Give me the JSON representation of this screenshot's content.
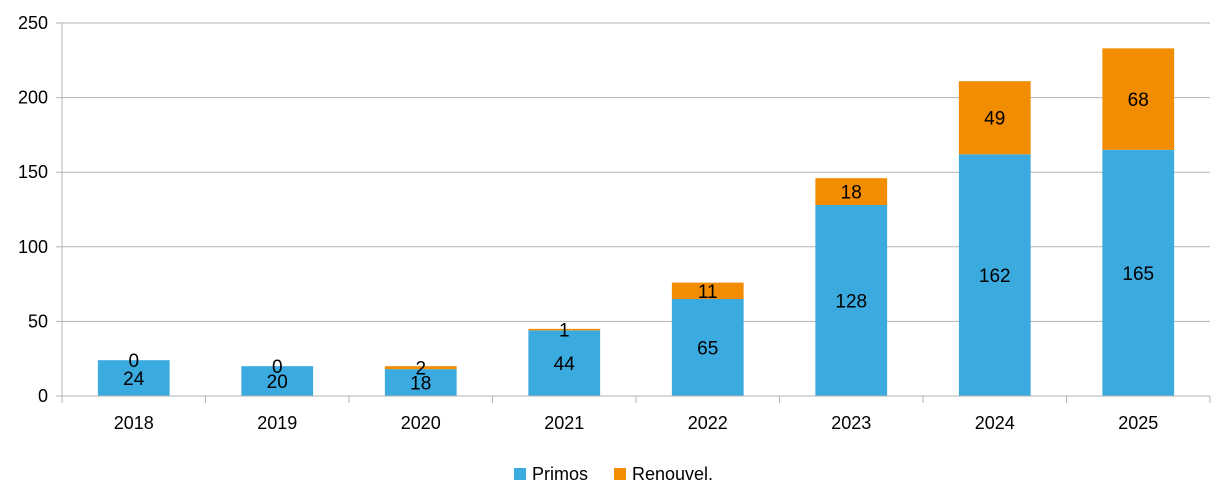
{
  "chart_data": {
    "type": "bar",
    "stacked": true,
    "categories": [
      "2018",
      "2019",
      "2020",
      "2021",
      "2022",
      "2023",
      "2024",
      "2025"
    ],
    "series": [
      {
        "name": "Primos",
        "values": [
          24,
          20,
          18,
          44,
          65,
          128,
          162,
          165
        ],
        "color": "#3aaadf"
      },
      {
        "name": "Renouvel.",
        "values": [
          0,
          0,
          2,
          1,
          11,
          18,
          49,
          68
        ],
        "color": "#f28c00"
      }
    ],
    "title": "",
    "xlabel": "",
    "ylabel": "",
    "ylim": [
      0,
      250
    ],
    "yticks": [
      0,
      50,
      100,
      150,
      200,
      250
    ],
    "grid": true,
    "legend": "bottom-center",
    "data_labels": true
  }
}
